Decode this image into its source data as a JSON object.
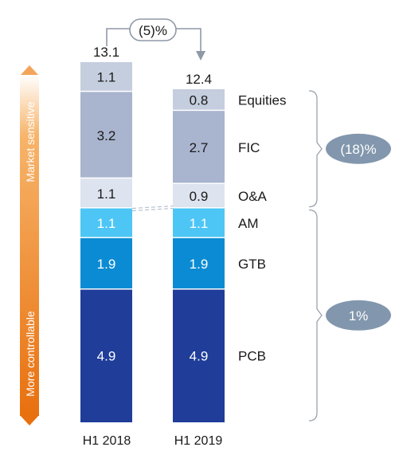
{
  "chart_data": {
    "type": "bar",
    "stacked": true,
    "categories": [
      "H1 2018",
      "H1 2019"
    ],
    "totals": [
      "13.1",
      "12.4"
    ],
    "series": [
      {
        "name": "PCB",
        "values": [
          4.9,
          4.9
        ],
        "labels": [
          "4.9",
          "4.9"
        ],
        "color": "#1f3d99",
        "text_color": "#ffffff"
      },
      {
        "name": "GTB",
        "values": [
          1.9,
          1.9
        ],
        "labels": [
          "1.9",
          "1.9"
        ],
        "color": "#0b8bd3",
        "text_color": "#ffffff"
      },
      {
        "name": "AM",
        "values": [
          1.1,
          1.1
        ],
        "labels": [
          "1.1",
          "1.1"
        ],
        "color": "#4dc6f5",
        "text_color": "#ffffff"
      },
      {
        "name": "O&A",
        "values": [
          1.1,
          0.9
        ],
        "labels": [
          "1.1",
          "0.9"
        ],
        "color": "#dde3ef",
        "text_color": "#1a1a1a"
      },
      {
        "name": "FIC",
        "values": [
          3.2,
          2.7
        ],
        "labels": [
          "3.2",
          "2.7"
        ],
        "color": "#a9b4ce",
        "text_color": "#1a1a1a"
      },
      {
        "name": "Equities",
        "values": [
          1.1,
          0.8
        ],
        "labels": [
          "1.1",
          "0.8"
        ],
        "color": "#c5cede",
        "text_color": "#1a1a1a"
      }
    ],
    "total_change": "(5)%",
    "groups": [
      {
        "label": "(18)%",
        "members": [
          "Equities",
          "FIC",
          "O&A"
        ]
      },
      {
        "label": "1%",
        "members": [
          "AM",
          "GTB",
          "PCB"
        ]
      }
    ],
    "side_axis": {
      "top_label": "Market sensitive",
      "bottom_label": "More controllable",
      "arrow_color": "#e8700e"
    },
    "colors": {
      "pill": "#8297ad",
      "bracket": "#9aa3ad",
      "text": "#1a1a1a"
    }
  }
}
